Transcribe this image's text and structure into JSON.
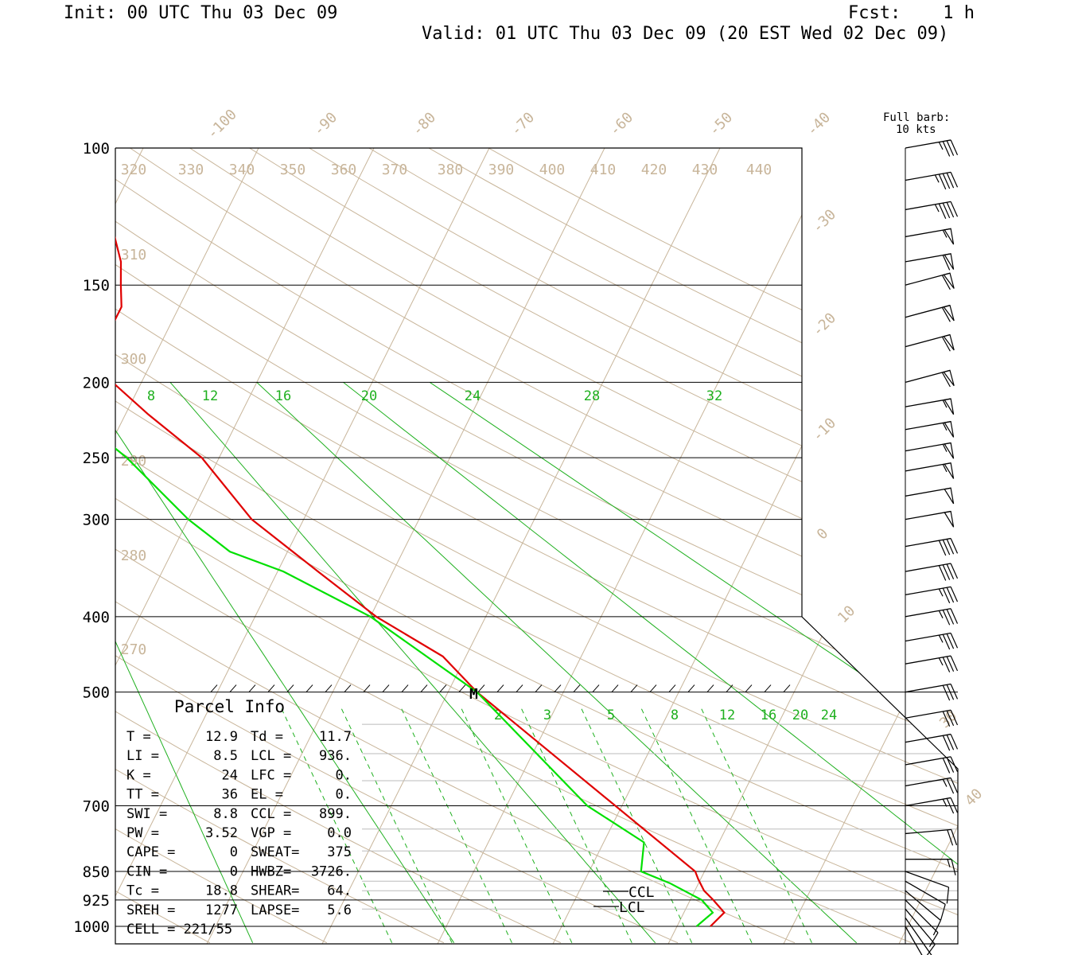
{
  "header": {
    "init": "Init: 00 UTC Thu 03 Dec 09",
    "fcst": "Fcst:    1 h",
    "valid": "Valid: 01 UTC Thu 03 Dec 09 (20 EST Wed 02 Dec 09)"
  },
  "legend": {
    "barb_line1": "Full barb:",
    "barb_line2": "10 kts"
  },
  "colors": {
    "temperature": "#e00000",
    "dewpoint": "#00e000",
    "isotherm": "#c8b59a",
    "mixing_ratio": "#1fb01f"
  },
  "parcel_info": {
    "title": "Parcel Info",
    "rows": [
      [
        "T  =",
        "12.9",
        "Td =",
        "11.7"
      ],
      [
        "LI =",
        "8.5",
        "LCL =",
        "936."
      ],
      [
        "K  =",
        "24",
        "LFC =",
        "0."
      ],
      [
        "TT =",
        "36",
        "EL  =",
        "0."
      ],
      [
        "SWI =",
        "8.8",
        "CCL =",
        "899."
      ],
      [
        "PW =",
        "3.52",
        "VGP =",
        "0.0"
      ],
      [
        "CAPE =",
        "0",
        "SWEAT=",
        "375"
      ],
      [
        "CIN =",
        "0",
        "HWBZ=",
        "3726."
      ],
      [
        "Tc =",
        "18.8",
        "SHEAR=",
        "64."
      ],
      [
        "SREH =",
        "1277",
        "LAPSE=",
        "5.6"
      ],
      [
        "CELL = 221/55",
        "",
        "",
        ""
      ]
    ]
  },
  "markers": {
    "ccl": "CCL",
    "lcl": "LCL",
    "m": "M"
  },
  "chart_data": {
    "type": "line",
    "title": "",
    "pressure_levels": [
      100,
      150,
      200,
      250,
      300,
      400,
      500,
      700,
      850,
      925,
      1000
    ],
    "pressure_labels": [
      "100",
      "150",
      "200",
      "250",
      "300",
      "400",
      "500",
      "700",
      "850",
      "925",
      "1000"
    ],
    "isotherm_labels": [
      "-100",
      "-90",
      "-80",
      "-70",
      "-60",
      "-50",
      "-40",
      "-30",
      "-20",
      "-10",
      "0",
      "10",
      "30",
      "40"
    ],
    "theta_labels_top": [
      "320",
      "330",
      "340",
      "350",
      "360",
      "370",
      "380",
      "390",
      "400",
      "410",
      "420",
      "430",
      "440"
    ],
    "theta_labels_left": [
      "310",
      "300",
      "290",
      "280",
      "270"
    ],
    "mixing_ratio_upper": [
      "8",
      "12",
      "16",
      "20",
      "24",
      "28",
      "32"
    ],
    "mixing_ratio_lower": [
      "2",
      "3",
      "5",
      "8",
      "12",
      "16",
      "20",
      "24"
    ],
    "series": [
      {
        "name": "Temperature",
        "points": [
          [
            1000,
            12.9
          ],
          [
            960,
            13.5
          ],
          [
            925,
            12.0
          ],
          [
            900,
            10.8
          ],
          [
            870,
            9.8
          ],
          [
            850,
            9.2
          ],
          [
            500,
            -17.5
          ],
          [
            450,
            -22.0
          ],
          [
            400,
            -29.5
          ],
          [
            350,
            -36.5
          ],
          [
            300,
            -44.5
          ],
          [
            250,
            -51.5
          ],
          [
            220,
            -58.0
          ],
          [
            200,
            -62.5
          ],
          [
            190,
            -64.0
          ],
          [
            175,
            -65.0
          ],
          [
            160,
            -65.0
          ],
          [
            150,
            -66.0
          ],
          [
            140,
            -67.0
          ],
          [
            125,
            -69.5
          ],
          [
            100,
            -74.0
          ]
        ]
      },
      {
        "name": "Dewpoint",
        "points": [
          [
            1000,
            11.7
          ],
          [
            960,
            12.5
          ],
          [
            925,
            11.0
          ],
          [
            880,
            7.5
          ],
          [
            850,
            4.5
          ],
          [
            780,
            3.5
          ],
          [
            700,
            -3.0
          ],
          [
            500,
            -17.5
          ],
          [
            400,
            -30.0
          ],
          [
            350,
            -39.5
          ],
          [
            330,
            -45.0
          ],
          [
            300,
            -50.0
          ],
          [
            250,
            -58.0
          ],
          [
            220,
            -64.5
          ],
          [
            200,
            -70.0
          ],
          [
            190,
            -72.0
          ],
          [
            175,
            -76.0
          ],
          [
            165,
            -80.0
          ],
          [
            150,
            -84.0
          ],
          [
            130,
            -88.0
          ],
          [
            120,
            -87.0
          ],
          [
            110,
            -85.0
          ],
          [
            100,
            -84.0
          ]
        ]
      }
    ],
    "wind_barbs_kt": [
      {
        "p": 100,
        "dir": 280,
        "spd": 35
      },
      {
        "p": 110,
        "dir": 280,
        "spd": 45
      },
      {
        "p": 120,
        "dir": 280,
        "spd": 45
      },
      {
        "p": 130,
        "dir": 280,
        "spd": 55
      },
      {
        "p": 140,
        "dir": 280,
        "spd": 60
      },
      {
        "p": 150,
        "dir": 285,
        "spd": 60
      },
      {
        "p": 165,
        "dir": 285,
        "spd": 60
      },
      {
        "p": 180,
        "dir": 285,
        "spd": 60
      },
      {
        "p": 200,
        "dir": 285,
        "spd": 60
      },
      {
        "p": 215,
        "dir": 280,
        "spd": 55
      },
      {
        "p": 230,
        "dir": 280,
        "spd": 55
      },
      {
        "p": 245,
        "dir": 280,
        "spd": 55
      },
      {
        "p": 260,
        "dir": 280,
        "spd": 55
      },
      {
        "p": 280,
        "dir": 280,
        "spd": 50
      },
      {
        "p": 300,
        "dir": 280,
        "spd": 50
      },
      {
        "p": 325,
        "dir": 280,
        "spd": 40
      },
      {
        "p": 350,
        "dir": 280,
        "spd": 40
      },
      {
        "p": 375,
        "dir": 280,
        "spd": 35
      },
      {
        "p": 400,
        "dir": 280,
        "spd": 35
      },
      {
        "p": 430,
        "dir": 280,
        "spd": 35
      },
      {
        "p": 460,
        "dir": 280,
        "spd": 35
      },
      {
        "p": 500,
        "dir": 280,
        "spd": 30
      },
      {
        "p": 540,
        "dir": 280,
        "spd": 30
      },
      {
        "p": 580,
        "dir": 280,
        "spd": 30
      },
      {
        "p": 620,
        "dir": 280,
        "spd": 30
      },
      {
        "p": 660,
        "dir": 280,
        "spd": 25
      },
      {
        "p": 700,
        "dir": 280,
        "spd": 25
      },
      {
        "p": 760,
        "dir": 275,
        "spd": 20
      },
      {
        "p": 820,
        "dir": 270,
        "spd": 15
      },
      {
        "p": 850,
        "dir": 250,
        "spd": 10
      },
      {
        "p": 875,
        "dir": 240,
        "spd": 10
      },
      {
        "p": 900,
        "dir": 230,
        "spd": 10
      },
      {
        "p": 925,
        "dir": 225,
        "spd": 10
      },
      {
        "p": 950,
        "dir": 220,
        "spd": 10
      },
      {
        "p": 975,
        "dir": 215,
        "spd": 10
      },
      {
        "p": 1000,
        "dir": 210,
        "spd": 10
      }
    ]
  }
}
